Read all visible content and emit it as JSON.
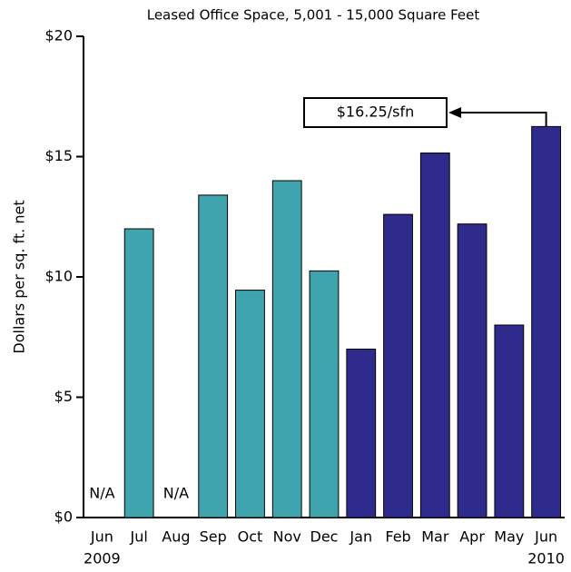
{
  "chart_data": {
    "type": "bar",
    "title": "Leased Office Space, 5,001 - 15,000 Square Feet",
    "y_label": "Dollars per sq. ft. net",
    "categories": [
      "Jun",
      "Jul",
      "Aug",
      "Sep",
      "Oct",
      "Nov",
      "Dec",
      "Jan",
      "Feb",
      "Mar",
      "Apr",
      "May",
      "Jun"
    ],
    "category_sublabels": [
      "2009",
      null,
      null,
      null,
      null,
      null,
      null,
      null,
      null,
      null,
      null,
      null,
      "2010"
    ],
    "values": [
      null,
      12,
      null,
      13.4,
      9.45,
      14,
      10.25,
      7,
      12.6,
      15.15,
      12.2,
      8,
      16.25
    ],
    "value_labels": [
      "N/A",
      null,
      "N/A",
      null,
      null,
      null,
      null,
      null,
      null,
      null,
      null,
      null,
      null
    ],
    "colors": [
      "#3fa4ad",
      "#3fa4ad",
      "#3fa4ad",
      "#3fa4ad",
      "#3fa4ad",
      "#3fa4ad",
      "#3fa4ad",
      "#2e2b8c",
      "#2e2b8c",
      "#2e2b8c",
      "#2e2b8c",
      "#2e2b8c",
      "#2e2b8c"
    ],
    "annotation": "$16.25/sfn",
    "ylim": [
      0,
      20
    ],
    "yticks": [
      {
        "value": 0,
        "label": "$0"
      },
      {
        "value": 5,
        "label": "$5"
      },
      {
        "value": 10,
        "label": "$10"
      },
      {
        "value": 15,
        "label": "$15"
      },
      {
        "value": 20,
        "label": "$20"
      }
    ],
    "grid": false
  }
}
